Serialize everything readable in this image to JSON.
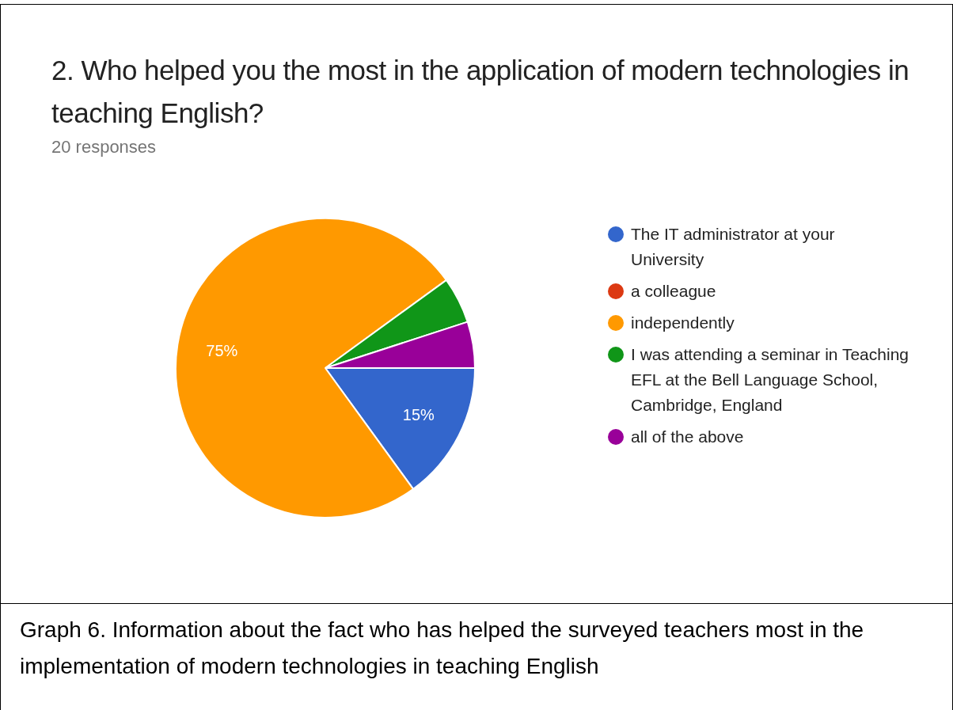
{
  "chart_data": {
    "type": "pie",
    "title": "2. Who helped you the most in the application of modern technologies in teaching English?",
    "subtitle": "20 responses",
    "categories": [
      "The IT administrator at your University",
      "a colleague",
      "independently",
      "I was attending a seminar in Teaching EFL at the Bell Language School, Cambridge, England",
      "all of the above"
    ],
    "values": [
      15,
      0,
      75,
      5,
      5
    ],
    "colors": [
      "#3366cc",
      "#dc3912",
      "#ff9900",
      "#109618",
      "#990099"
    ],
    "value_labels": [
      "15%",
      null,
      "75%",
      null,
      null
    ],
    "legend": "right",
    "annotations": [
      "Graph 6. Information about the fact who has helped the surveyed teachers most in the implementation of modern technologies in teaching English"
    ]
  }
}
